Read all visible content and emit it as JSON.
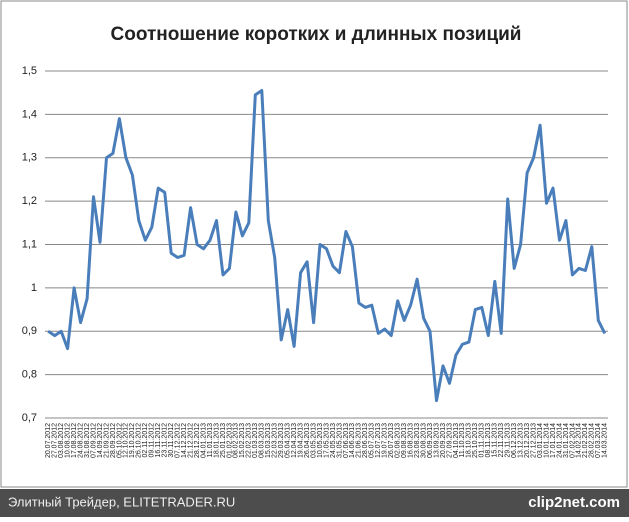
{
  "chart_data": {
    "type": "line",
    "title": "Соотношение коротких и длинных позиций",
    "categories": [
      "20.07.2012",
      "27.07.2012",
      "03.08.2012",
      "10.08.2012",
      "17.08.2012",
      "24.08.2012",
      "31.08.2012",
      "07.09.2012",
      "14.09.2012",
      "21.09.2012",
      "28.09.2012",
      "05.10.2012",
      "12.10.2012",
      "19.10.2012",
      "26.10.2012",
      "02.11.2012",
      "09.11.2012",
      "16.11.2012",
      "23.11.2012",
      "30.11.2012",
      "07.12.2012",
      "14.12.2012",
      "21.12.2012",
      "28.12.2012",
      "04.01.2013",
      "11.01.2013",
      "18.01.2013",
      "25.01.2013",
      "01.02.2013",
      "08.02.2013",
      "15.02.2013",
      "22.02.2013",
      "01.03.2013",
      "08.03.2013",
      "15.03.2013",
      "22.03.2013",
      "29.03.2013",
      "05.04.2013",
      "12.04.2013",
      "19.04.2013",
      "26.04.2013",
      "03.05.2013",
      "10.05.2013",
      "17.05.2013",
      "24.05.2013",
      "31.05.2013",
      "07.06.2013",
      "14.06.2013",
      "21.06.2013",
      "28.06.2013",
      "05.07.2013",
      "12.07.2013",
      "19.07.2013",
      "26.07.2013",
      "02.08.2013",
      "09.08.2013",
      "16.08.2013",
      "23.08.2013",
      "30.08.2013",
      "06.09.2013",
      "13.09.2013",
      "20.09.2013",
      "27.09.2013",
      "04.10.2013",
      "11.10.2013",
      "18.10.2013",
      "25.10.2013",
      "01.11.2013",
      "08.11.2013",
      "15.11.2013",
      "22.11.2013",
      "29.11.2013",
      "06.12.2013",
      "13.12.2013",
      "20.12.2013",
      "27.12.2013",
      "03.01.2014",
      "10.01.2014",
      "17.01.2014",
      "24.01.2014",
      "31.01.2014",
      "07.02.2014",
      "14.02.2014",
      "21.02.2014",
      "28.02.2014",
      "07.03.2014",
      "14.03.2014"
    ],
    "series": [
      {
        "color": "#4a7ebb",
        "values": [
          0.9,
          0.89,
          0.9,
          0.86,
          1.0,
          0.92,
          0.975,
          1.21,
          1.105,
          1.3,
          1.31,
          1.39,
          1.3,
          1.26,
          1.155,
          1.11,
          1.14,
          1.23,
          1.22,
          1.08,
          1.07,
          1.075,
          1.185,
          1.1,
          1.09,
          1.11,
          1.155,
          1.03,
          1.045,
          1.175,
          1.12,
          1.15,
          1.445,
          1.455,
          1.155,
          1.07,
          0.88,
          0.95,
          0.865,
          1.035,
          1.06,
          0.92,
          1.1,
          1.09,
          1.05,
          1.035,
          1.13,
          1.095,
          0.965,
          0.955,
          0.96,
          0.895,
          0.905,
          0.89,
          0.97,
          0.925,
          0.96,
          1.02,
          0.93,
          0.9,
          0.74,
          0.82,
          0.78,
          0.845,
          0.87,
          0.875,
          0.95,
          0.955,
          0.89,
          1.015,
          0.895,
          1.205,
          1.045,
          1.1,
          1.265,
          1.3,
          1.375,
          1.195,
          1.23,
          1.11,
          1.155,
          1.03,
          1.045,
          1.04,
          1.095,
          0.925,
          0.895
        ]
      }
    ],
    "ylim": [
      0.7,
      1.5
    ],
    "yticks": [
      {
        "value": 0.7,
        "label": "0,7"
      },
      {
        "value": 0.8,
        "label": "0,8"
      },
      {
        "value": 0.9,
        "label": "0,9"
      },
      1,
      {
        "value": 1.1,
        "label": "1,1"
      },
      {
        "value": 1.2,
        "label": "1,2"
      },
      {
        "value": 1.3,
        "label": "1,3"
      },
      {
        "value": 1.4,
        "label": "1,4"
      },
      {
        "value": 1.5,
        "label": "1,5"
      }
    ],
    "grid": true
  },
  "footer": {
    "text": "Элитный Трейдер, ELITETRADER.RU",
    "logo": "clip2net.com"
  }
}
